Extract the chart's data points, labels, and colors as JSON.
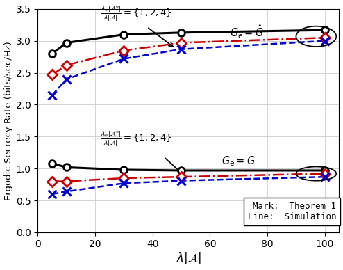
{
  "x": [
    5,
    10,
    30,
    50,
    100
  ],
  "upper_black": [
    2.8,
    2.97,
    3.1,
    3.13,
    3.17
  ],
  "upper_red": [
    2.47,
    2.62,
    2.85,
    2.97,
    3.05
  ],
  "upper_blue": [
    2.15,
    2.4,
    2.72,
    2.87,
    3.0
  ],
  "lower_black": [
    1.08,
    1.02,
    0.98,
    0.97,
    0.97
  ],
  "lower_red": [
    0.8,
    0.8,
    0.85,
    0.87,
    0.92
  ],
  "lower_blue": [
    0.6,
    0.64,
    0.77,
    0.81,
    0.87
  ],
  "xlim": [
    0,
    105
  ],
  "ylim": [
    0,
    3.5
  ],
  "xlabel": "$\\lambda|\\mathcal{A}|$",
  "ylabel": "Ergodic Secrecy Rate (bits/sec/Hz)",
  "xticks": [
    0,
    20,
    40,
    60,
    80,
    100
  ],
  "yticks": [
    0,
    0.5,
    1.0,
    1.5,
    2.0,
    2.5,
    3.0,
    3.5
  ],
  "black_color": "#000000",
  "red_color": "#cc0000",
  "blue_color": "#0000cc",
  "upper_annot_text": "$\\frac{\\lambda_{\\mathrm{e}}|\\mathcal{A}^{\\mathrm{e}}|}{\\lambda|\\mathcal{A}|}=\\{1,2,4\\}$",
  "lower_annot_text": "$\\frac{\\lambda_{\\mathrm{e}}|\\mathcal{A}^{\\mathrm{e}}|}{\\lambda|\\mathcal{A}|}=\\{1,2,4\\}$",
  "upper_label": "$G_{\\mathrm{e}}=\\hat{G}$",
  "lower_label": "$G_{\\mathrm{e}}=G$",
  "legend_text": "Mark:  Theorem 1\nLine:  Simulation"
}
